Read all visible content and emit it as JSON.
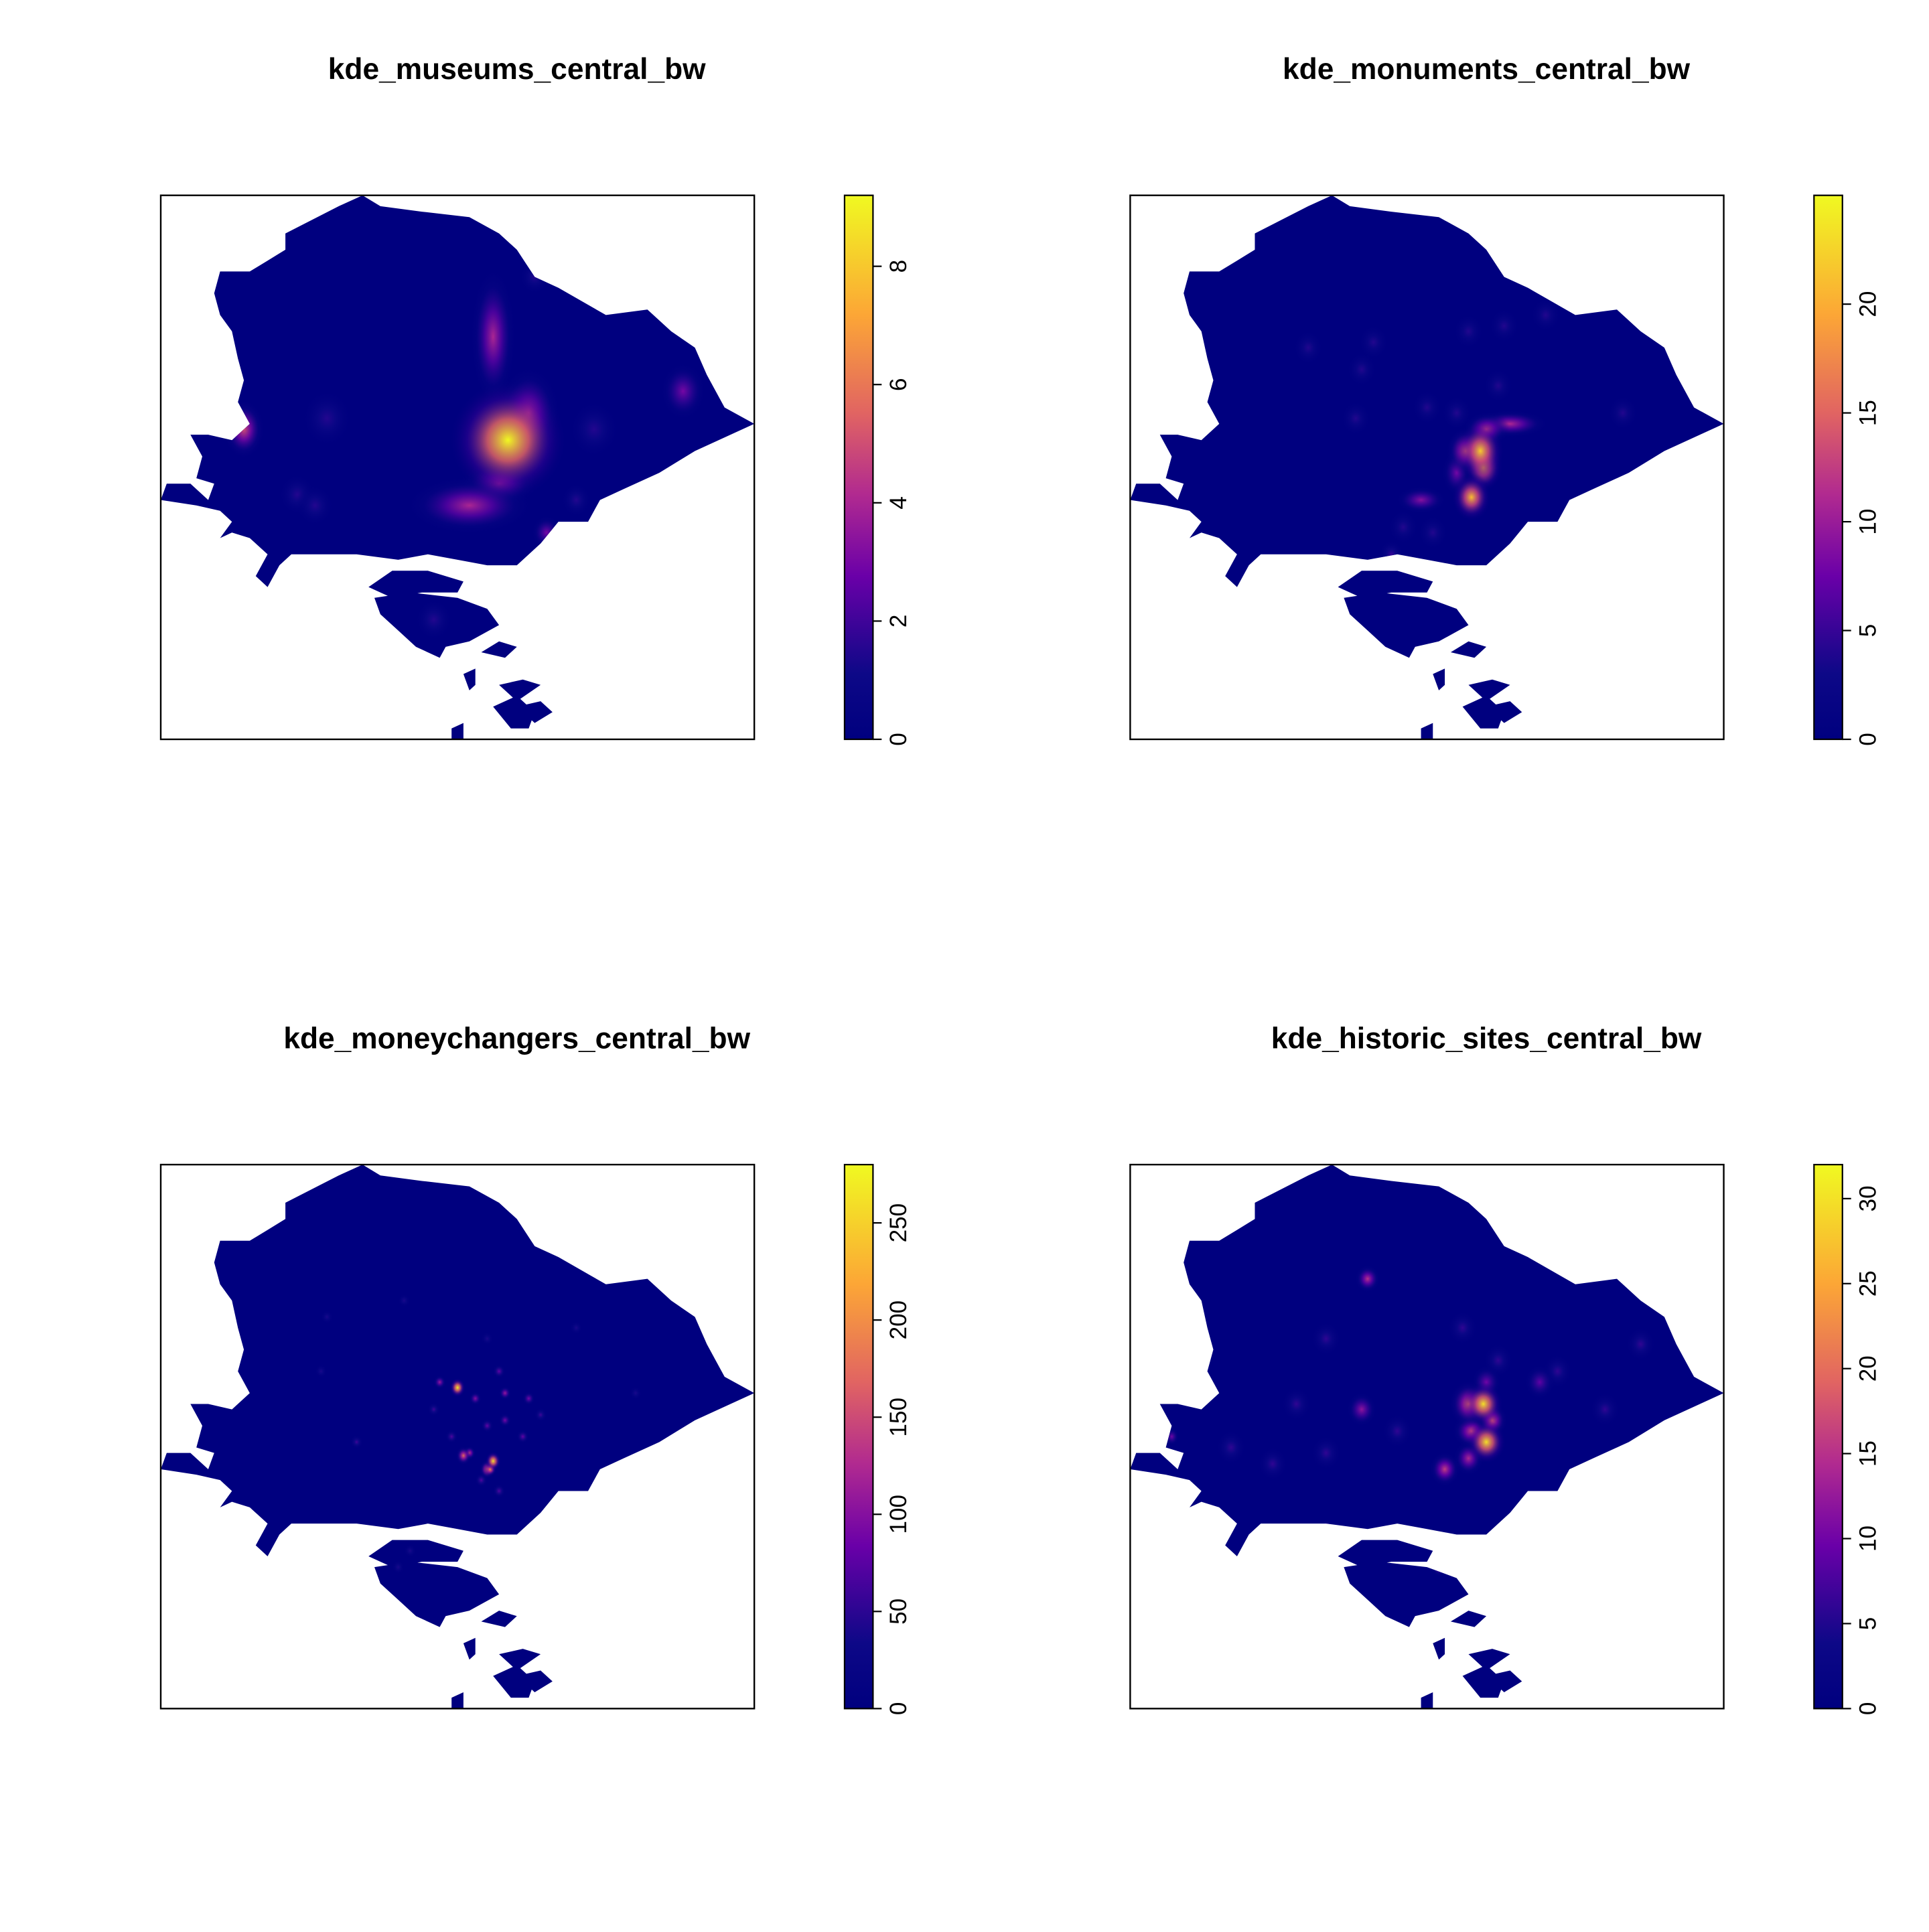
{
  "chart_data": [
    {
      "type": "heatmap",
      "title": "kde_museums_central_bw",
      "colorbar": {
        "min": 0,
        "max": 9.2,
        "ticks": [
          0,
          2,
          4,
          6,
          8
        ]
      },
      "hotspots": [
        {
          "x": 0.585,
          "y": 0.45,
          "value": 9.2,
          "sx": 0.045,
          "sy": 0.05
        },
        {
          "x": 0.62,
          "y": 0.4,
          "value": 4.0,
          "sx": 0.025,
          "sy": 0.04
        },
        {
          "x": 0.52,
          "y": 0.57,
          "value": 4.0,
          "sx": 0.05,
          "sy": 0.025
        },
        {
          "x": 0.57,
          "y": 0.53,
          "value": 3.5,
          "sx": 0.03,
          "sy": 0.02
        },
        {
          "x": 0.56,
          "y": 0.26,
          "value": 4.0,
          "sx": 0.018,
          "sy": 0.06
        },
        {
          "x": 0.14,
          "y": 0.43,
          "value": 5.0,
          "sx": 0.016,
          "sy": 0.025
        },
        {
          "x": 0.88,
          "y": 0.36,
          "value": 3.0,
          "sx": 0.018,
          "sy": 0.025
        },
        {
          "x": 0.28,
          "y": 0.41,
          "value": 1.5,
          "sx": 0.02,
          "sy": 0.025
        },
        {
          "x": 0.73,
          "y": 0.43,
          "value": 1.5,
          "sx": 0.02,
          "sy": 0.025
        },
        {
          "x": 0.65,
          "y": 0.62,
          "value": 3.0,
          "sx": 0.012,
          "sy": 0.015
        },
        {
          "x": 0.7,
          "y": 0.56,
          "value": 1.5,
          "sx": 0.012,
          "sy": 0.015
        },
        {
          "x": 0.23,
          "y": 0.55,
          "value": 1.5,
          "sx": 0.015,
          "sy": 0.018
        },
        {
          "x": 0.26,
          "y": 0.57,
          "value": 1.5,
          "sx": 0.015,
          "sy": 0.018
        },
        {
          "x": 0.46,
          "y": 0.78,
          "value": 1.5,
          "sx": 0.015,
          "sy": 0.018
        },
        {
          "x": 0.63,
          "y": 0.15,
          "value": 1.5,
          "sx": 0.012,
          "sy": 0.015
        }
      ]
    },
    {
      "type": "heatmap",
      "title": "kde_monuments_central_bw",
      "colorbar": {
        "min": 0,
        "max": 25,
        "ticks": [
          0,
          5,
          10,
          15,
          20
        ]
      },
      "hotspots": [
        {
          "x": 0.59,
          "y": 0.47,
          "value": 22,
          "sx": 0.018,
          "sy": 0.025
        },
        {
          "x": 0.595,
          "y": 0.5,
          "value": 20,
          "sx": 0.015,
          "sy": 0.02
        },
        {
          "x": 0.575,
          "y": 0.555,
          "value": 21,
          "sx": 0.015,
          "sy": 0.02
        },
        {
          "x": 0.565,
          "y": 0.47,
          "value": 14,
          "sx": 0.015,
          "sy": 0.02
        },
        {
          "x": 0.6,
          "y": 0.43,
          "value": 12,
          "sx": 0.018,
          "sy": 0.015
        },
        {
          "x": 0.64,
          "y": 0.42,
          "value": 11,
          "sx": 0.03,
          "sy": 0.012
        },
        {
          "x": 0.55,
          "y": 0.51,
          "value": 8,
          "sx": 0.012,
          "sy": 0.02
        },
        {
          "x": 0.49,
          "y": 0.56,
          "value": 9,
          "sx": 0.02,
          "sy": 0.012
        },
        {
          "x": 0.3,
          "y": 0.28,
          "value": 4,
          "sx": 0.012,
          "sy": 0.015
        },
        {
          "x": 0.41,
          "y": 0.27,
          "value": 4,
          "sx": 0.012,
          "sy": 0.015
        },
        {
          "x": 0.39,
          "y": 0.32,
          "value": 4,
          "sx": 0.012,
          "sy": 0.015
        },
        {
          "x": 0.57,
          "y": 0.25,
          "value": 4,
          "sx": 0.012,
          "sy": 0.015
        },
        {
          "x": 0.63,
          "y": 0.24,
          "value": 4,
          "sx": 0.012,
          "sy": 0.015
        },
        {
          "x": 0.7,
          "y": 0.22,
          "value": 4,
          "sx": 0.012,
          "sy": 0.015
        },
        {
          "x": 0.5,
          "y": 0.39,
          "value": 4,
          "sx": 0.012,
          "sy": 0.015
        },
        {
          "x": 0.55,
          "y": 0.4,
          "value": 4,
          "sx": 0.012,
          "sy": 0.015
        },
        {
          "x": 0.62,
          "y": 0.35,
          "value": 4,
          "sx": 0.012,
          "sy": 0.015
        },
        {
          "x": 0.38,
          "y": 0.41,
          "value": 4,
          "sx": 0.012,
          "sy": 0.015
        },
        {
          "x": 0.83,
          "y": 0.4,
          "value": 4,
          "sx": 0.012,
          "sy": 0.015
        },
        {
          "x": 0.46,
          "y": 0.61,
          "value": 4,
          "sx": 0.012,
          "sy": 0.015
        },
        {
          "x": 0.51,
          "y": 0.62,
          "value": 4,
          "sx": 0.012,
          "sy": 0.015
        },
        {
          "x": 0.44,
          "y": 0.66,
          "value": 5,
          "sx": 0.01,
          "sy": 0.012
        }
      ]
    },
    {
      "type": "heatmap",
      "title": "kde_moneychangers_central_bw",
      "colorbar": {
        "min": 0,
        "max": 280,
        "ticks": [
          0,
          50,
          100,
          150,
          200,
          250
        ]
      },
      "hotspots": [
        {
          "x": 0.5,
          "y": 0.41,
          "value": 270,
          "sx": 0.006,
          "sy": 0.008
        },
        {
          "x": 0.56,
          "y": 0.545,
          "value": 260,
          "sx": 0.006,
          "sy": 0.008
        },
        {
          "x": 0.555,
          "y": 0.56,
          "value": 200,
          "sx": 0.005,
          "sy": 0.006
        },
        {
          "x": 0.55,
          "y": 0.56,
          "value": 180,
          "sx": 0.006,
          "sy": 0.008
        },
        {
          "x": 0.51,
          "y": 0.535,
          "value": 170,
          "sx": 0.006,
          "sy": 0.008
        },
        {
          "x": 0.52,
          "y": 0.53,
          "value": 140,
          "sx": 0.005,
          "sy": 0.006
        },
        {
          "x": 0.47,
          "y": 0.4,
          "value": 110,
          "sx": 0.005,
          "sy": 0.006
        },
        {
          "x": 0.53,
          "y": 0.43,
          "value": 100,
          "sx": 0.005,
          "sy": 0.006
        },
        {
          "x": 0.58,
          "y": 0.42,
          "value": 110,
          "sx": 0.005,
          "sy": 0.006
        },
        {
          "x": 0.62,
          "y": 0.43,
          "value": 90,
          "sx": 0.005,
          "sy": 0.006
        },
        {
          "x": 0.58,
          "y": 0.47,
          "value": 90,
          "sx": 0.005,
          "sy": 0.006
        },
        {
          "x": 0.61,
          "y": 0.5,
          "value": 80,
          "sx": 0.005,
          "sy": 0.006
        },
        {
          "x": 0.55,
          "y": 0.48,
          "value": 80,
          "sx": 0.005,
          "sy": 0.006
        },
        {
          "x": 0.57,
          "y": 0.38,
          "value": 80,
          "sx": 0.005,
          "sy": 0.006
        },
        {
          "x": 0.49,
          "y": 0.5,
          "value": 70,
          "sx": 0.005,
          "sy": 0.006
        },
        {
          "x": 0.54,
          "y": 0.58,
          "value": 70,
          "sx": 0.005,
          "sy": 0.006
        },
        {
          "x": 0.57,
          "y": 0.6,
          "value": 70,
          "sx": 0.005,
          "sy": 0.006
        },
        {
          "x": 0.46,
          "y": 0.45,
          "value": 60,
          "sx": 0.005,
          "sy": 0.006
        },
        {
          "x": 0.64,
          "y": 0.46,
          "value": 60,
          "sx": 0.005,
          "sy": 0.006
        },
        {
          "x": 0.33,
          "y": 0.51,
          "value": 60,
          "sx": 0.005,
          "sy": 0.006
        },
        {
          "x": 0.41,
          "y": 0.25,
          "value": 40,
          "sx": 0.005,
          "sy": 0.006
        },
        {
          "x": 0.55,
          "y": 0.32,
          "value": 40,
          "sx": 0.005,
          "sy": 0.006
        },
        {
          "x": 0.28,
          "y": 0.28,
          "value": 40,
          "sx": 0.005,
          "sy": 0.006
        },
        {
          "x": 0.7,
          "y": 0.3,
          "value": 40,
          "sx": 0.005,
          "sy": 0.006
        },
        {
          "x": 0.42,
          "y": 0.71,
          "value": 40,
          "sx": 0.005,
          "sy": 0.006
        },
        {
          "x": 0.4,
          "y": 0.74,
          "value": 40,
          "sx": 0.005,
          "sy": 0.006
        },
        {
          "x": 0.8,
          "y": 0.42,
          "value": 40,
          "sx": 0.005,
          "sy": 0.006
        },
        {
          "x": 0.27,
          "y": 0.38,
          "value": 40,
          "sx": 0.005,
          "sy": 0.006
        }
      ]
    },
    {
      "type": "heatmap",
      "title": "kde_historic_sites_central_bw",
      "colorbar": {
        "min": 0,
        "max": 32,
        "ticks": [
          0,
          5,
          10,
          15,
          20,
          25,
          30
        ]
      },
      "hotspots": [
        {
          "x": 0.595,
          "y": 0.44,
          "value": 30,
          "sx": 0.015,
          "sy": 0.018
        },
        {
          "x": 0.6,
          "y": 0.51,
          "value": 30,
          "sx": 0.015,
          "sy": 0.018
        },
        {
          "x": 0.57,
          "y": 0.44,
          "value": 18,
          "sx": 0.015,
          "sy": 0.02
        },
        {
          "x": 0.61,
          "y": 0.47,
          "value": 17,
          "sx": 0.012,
          "sy": 0.015
        },
        {
          "x": 0.575,
          "y": 0.49,
          "value": 16,
          "sx": 0.015,
          "sy": 0.015
        },
        {
          "x": 0.57,
          "y": 0.54,
          "value": 14,
          "sx": 0.012,
          "sy": 0.015
        },
        {
          "x": 0.53,
          "y": 0.56,
          "value": 16,
          "sx": 0.012,
          "sy": 0.015
        },
        {
          "x": 0.6,
          "y": 0.4,
          "value": 10,
          "sx": 0.012,
          "sy": 0.015
        },
        {
          "x": 0.39,
          "y": 0.45,
          "value": 12,
          "sx": 0.012,
          "sy": 0.015
        },
        {
          "x": 0.69,
          "y": 0.4,
          "value": 9,
          "sx": 0.012,
          "sy": 0.015
        },
        {
          "x": 0.4,
          "y": 0.21,
          "value": 15,
          "sx": 0.01,
          "sy": 0.012
        },
        {
          "x": 0.33,
          "y": 0.32,
          "value": 6,
          "sx": 0.012,
          "sy": 0.015
        },
        {
          "x": 0.56,
          "y": 0.3,
          "value": 6,
          "sx": 0.012,
          "sy": 0.015
        },
        {
          "x": 0.62,
          "y": 0.36,
          "value": 6,
          "sx": 0.012,
          "sy": 0.015
        },
        {
          "x": 0.72,
          "y": 0.38,
          "value": 6,
          "sx": 0.012,
          "sy": 0.015
        },
        {
          "x": 0.86,
          "y": 0.33,
          "value": 6,
          "sx": 0.012,
          "sy": 0.015
        },
        {
          "x": 0.28,
          "y": 0.44,
          "value": 6,
          "sx": 0.012,
          "sy": 0.015
        },
        {
          "x": 0.17,
          "y": 0.52,
          "value": 6,
          "sx": 0.012,
          "sy": 0.015
        },
        {
          "x": 0.24,
          "y": 0.55,
          "value": 6,
          "sx": 0.012,
          "sy": 0.015
        },
        {
          "x": 0.33,
          "y": 0.53,
          "value": 6,
          "sx": 0.012,
          "sy": 0.015
        },
        {
          "x": 0.45,
          "y": 0.49,
          "value": 6,
          "sx": 0.012,
          "sy": 0.015
        },
        {
          "x": 0.8,
          "y": 0.45,
          "value": 6,
          "sx": 0.012,
          "sy": 0.015
        },
        {
          "x": 0.12,
          "y": 0.38,
          "value": 8,
          "sx": 0.008,
          "sy": 0.01
        },
        {
          "x": 0.33,
          "y": 0.67,
          "value": 15,
          "sx": 0.006,
          "sy": 0.008
        },
        {
          "x": 0.52,
          "y": 0.74,
          "value": 12,
          "sx": 0.006,
          "sy": 0.008
        },
        {
          "x": 0.07,
          "y": 0.5,
          "value": 10,
          "sx": 0.006,
          "sy": 0.008
        },
        {
          "x": 0.67,
          "y": 0.63,
          "value": 6,
          "sx": 0.01,
          "sy": 0.012
        }
      ]
    }
  ]
}
